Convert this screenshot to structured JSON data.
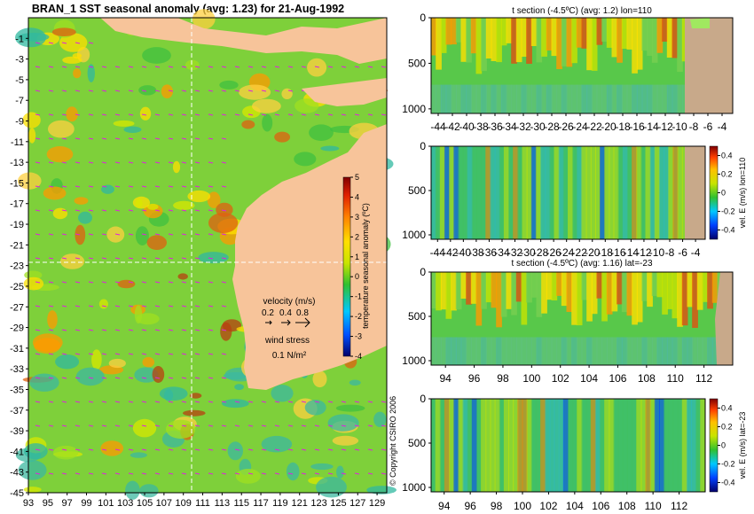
{
  "main_title": "BRAN_1  SST seasonal anomaly  (avg: 1.23) for 21-Aug-1992",
  "copyright": "© Copyright CSIRO 2006",
  "colors": {
    "land": "#f7c49a",
    "bathy": "#c8a98a",
    "crosshair": "#ffffff"
  },
  "chart_data": [
    {
      "type": "heatmap",
      "name": "SST seasonal anomaly map",
      "title": "BRAN_1  SST seasonal anomaly  (avg: 1.23) for 21-Aug-1992",
      "x_ticks": [
        "93",
        "95",
        "97",
        "99",
        "101",
        "103",
        "105",
        "107",
        "109",
        "111",
        "113",
        "115",
        "117",
        "119",
        "121",
        "123",
        "125",
        "127",
        "129"
      ],
      "y_ticks": [
        "-1",
        "-3",
        "-5",
        "-7",
        "-9",
        "-11",
        "-13",
        "-15",
        "-17",
        "-19",
        "-21",
        "-23",
        "-25",
        "-27",
        "-29",
        "-31",
        "-33",
        "-35",
        "-37",
        "-39",
        "-41",
        "-43",
        "-45"
      ],
      "xlim": [
        93,
        130
      ],
      "ylim": [
        -45,
        1
      ],
      "colorbar": {
        "label": "temperature seasonal anomaly (ºC)",
        "ticks": [
          "5",
          "4",
          "3",
          "2",
          "1",
          "0",
          "-1",
          "-2",
          "-3",
          "-4"
        ],
        "range": [
          -4,
          5
        ]
      },
      "legend": {
        "velocity_title": "velocity (m/s)",
        "velocity_scale": [
          "0.2",
          "0.4",
          "0.8"
        ],
        "wind_title": "wind stress",
        "wind_value": "0.1 N/m²"
      },
      "crosshair": {
        "lon": 110,
        "lat": -23
      }
    },
    {
      "type": "heatmap",
      "name": "temperature section along lon 110",
      "title": "t section (-4.5ºC)  (avg: 1.2) lon=110",
      "x_ticks": [
        "-44",
        "-42",
        "-40",
        "-38",
        "-36",
        "-34",
        "-32",
        "-30",
        "-28",
        "-26",
        "-24",
        "-22",
        "-20",
        "-18",
        "-16",
        "-14",
        "-12",
        "-10",
        "-8",
        "-6",
        "-4"
      ],
      "y_ticks": [
        "0",
        "500",
        "1000"
      ],
      "xlim": [
        -45,
        -2.5
      ],
      "ylim": [
        1050,
        0
      ]
    },
    {
      "type": "heatmap",
      "name": "eastward velocity section along lon 110",
      "x_ticks": [
        "-44",
        "-42",
        "-40",
        "-38",
        "-36",
        "-34",
        "-32",
        "-30",
        "-28",
        "-26",
        "-24",
        "-22",
        "-20",
        "-18",
        "-16",
        "-14",
        "-12",
        "-10",
        "-8",
        "-6",
        "-4"
      ],
      "y_ticks": [
        "0",
        "500",
        "1000"
      ],
      "xlim": [
        -45,
        -2.5
      ],
      "ylim": [
        1050,
        0
      ],
      "colorbar": {
        "label": "vel. E (m/s) lon=110",
        "ticks": [
          "0.4",
          "0.2",
          "0",
          "-0.2",
          "-0.4"
        ],
        "range": [
          -0.5,
          0.5
        ]
      }
    },
    {
      "type": "heatmap",
      "name": "temperature section along lat -23",
      "title": "t section (-4.5ºC)  (avg: 1.16) lat=-23",
      "x_ticks": [
        "94",
        "96",
        "98",
        "100",
        "102",
        "104",
        "106",
        "108",
        "110",
        "112"
      ],
      "y_ticks": [
        "0",
        "500",
        "1000"
      ],
      "xlim": [
        93,
        114
      ],
      "ylim": [
        1050,
        0
      ]
    },
    {
      "type": "heatmap",
      "name": "eastward velocity section along lat -23",
      "x_ticks": [
        "94",
        "96",
        "98",
        "100",
        "102",
        "104",
        "106",
        "108",
        "110",
        "112"
      ],
      "y_ticks": [
        "0",
        "500",
        "1000"
      ],
      "xlim": [
        93,
        114
      ],
      "ylim": [
        1050,
        0
      ],
      "colorbar": {
        "label": "vel. E (m/s) lat=-23",
        "ticks": [
          "0.4",
          "0.2",
          "0",
          "-0.2",
          "-0.4"
        ],
        "range": [
          -0.5,
          0.5
        ]
      }
    }
  ]
}
